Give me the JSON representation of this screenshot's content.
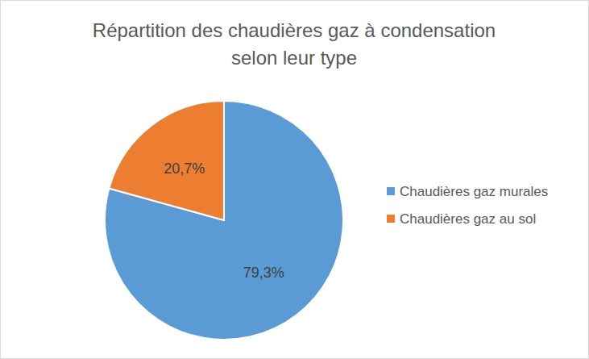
{
  "chart_data": {
    "type": "pie",
    "title": [
      "Répartition des chaudières gaz à condensation",
      "selon leur type"
    ],
    "categories": [
      "Chaudières gaz murales",
      "Chaudières gaz au sol"
    ],
    "values": [
      79.3,
      20.7
    ],
    "value_labels": [
      "79,3%",
      "20,7%"
    ],
    "colors": [
      "#5b9bd5",
      "#ed7d31"
    ],
    "data_labels": true,
    "legend": "right"
  }
}
